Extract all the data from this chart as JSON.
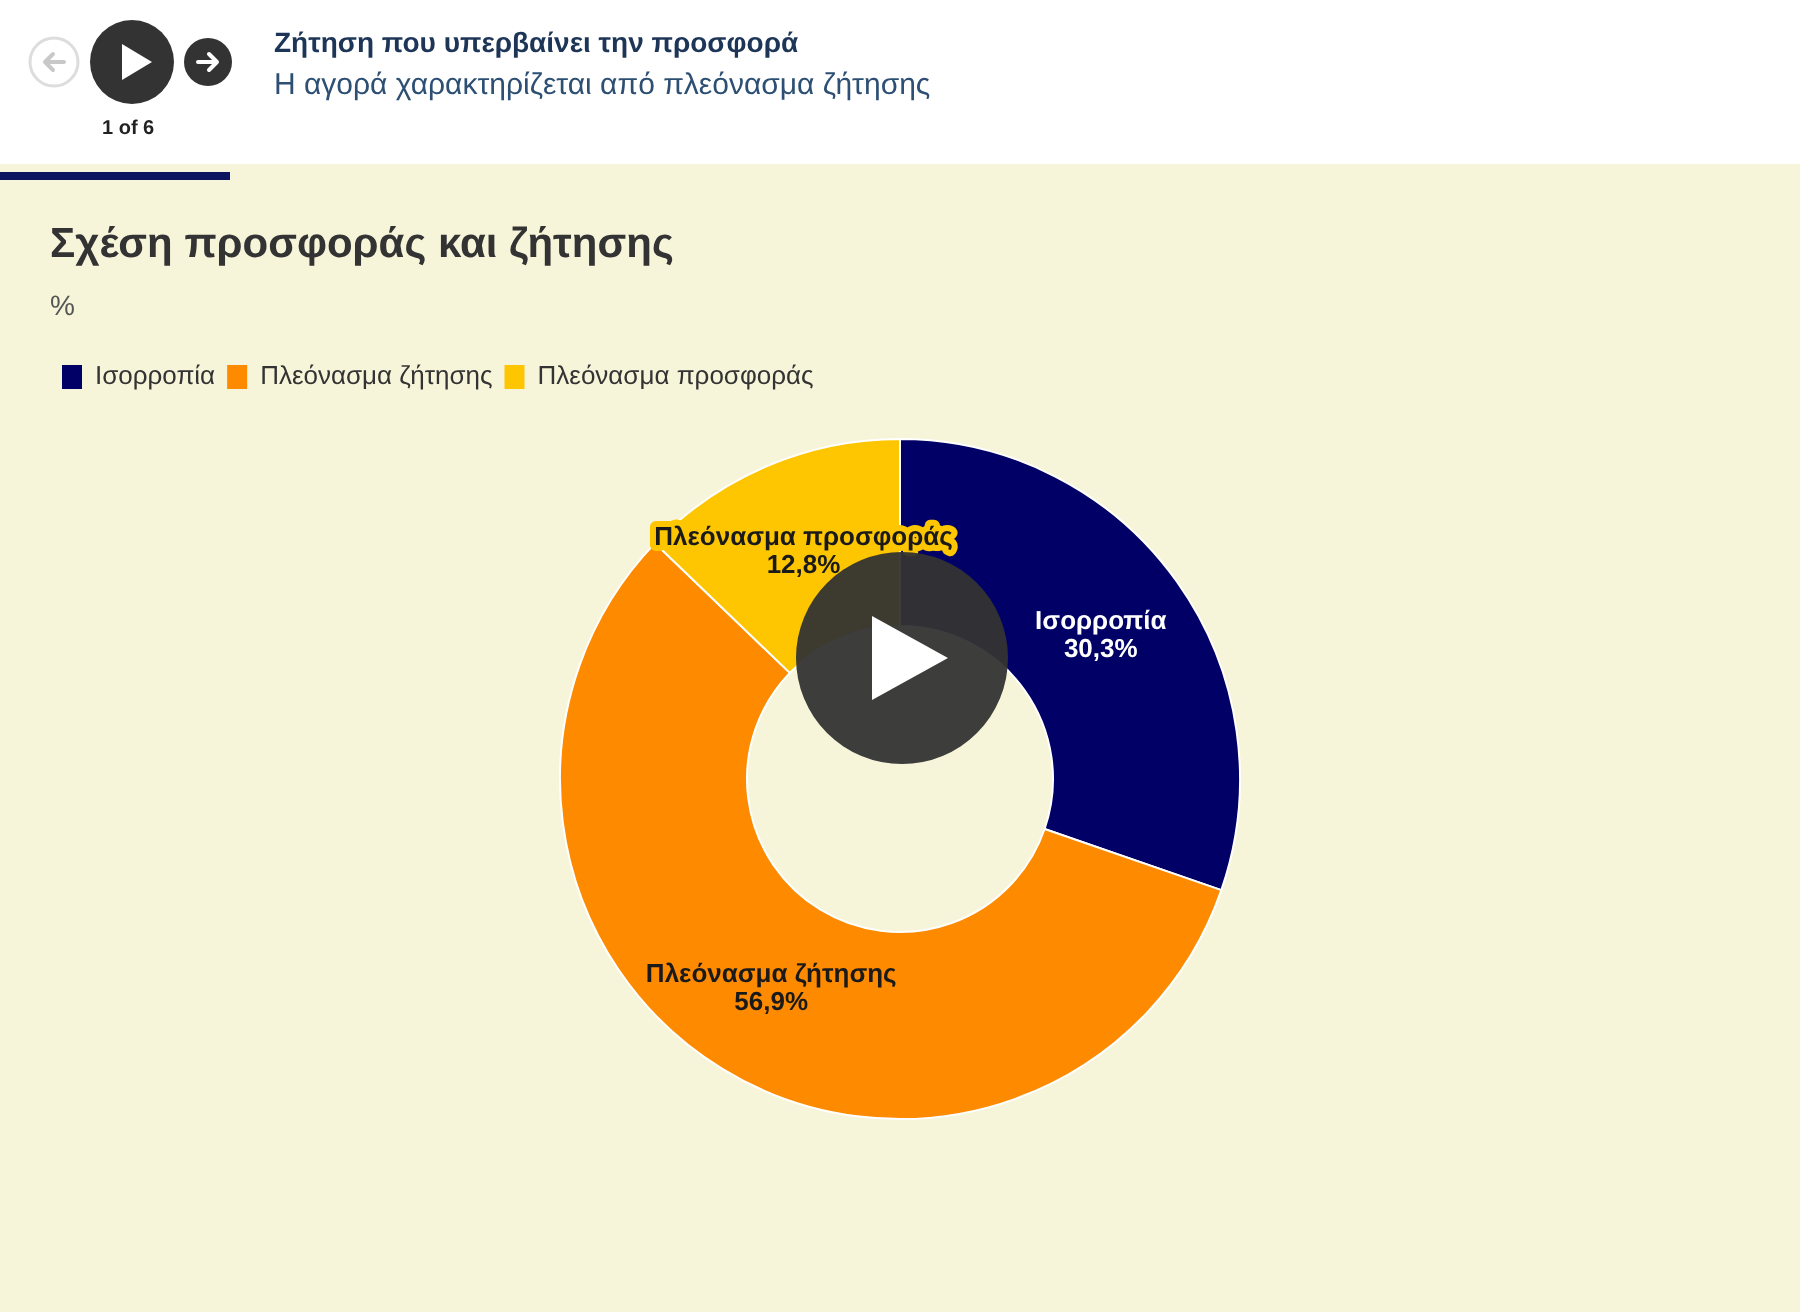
{
  "chart_data": {
    "type": "donut",
    "title": "Σχέση προσφοράς και ζήτησης",
    "subtitle": "%",
    "categories": [
      "Ισορροπία",
      "Πλεόνασμα ζήτησης",
      "Πλεόνασμα προσφοράς"
    ],
    "values": [
      30.3,
      56.9,
      12.8
    ],
    "colors": [
      "#000066",
      "#fe8a00",
      "#fec600"
    ],
    "value_labels": [
      "30,3%",
      "56,9%",
      "12,8%"
    ],
    "legend": "top left",
    "annotations": [
      "Ζήτηση που υπερβαίνει την προσφορά",
      "Η αγορά χαρακτηρίζεται από πλεόνασμα ζήτησης",
      "1 of 6"
    ]
  }
}
